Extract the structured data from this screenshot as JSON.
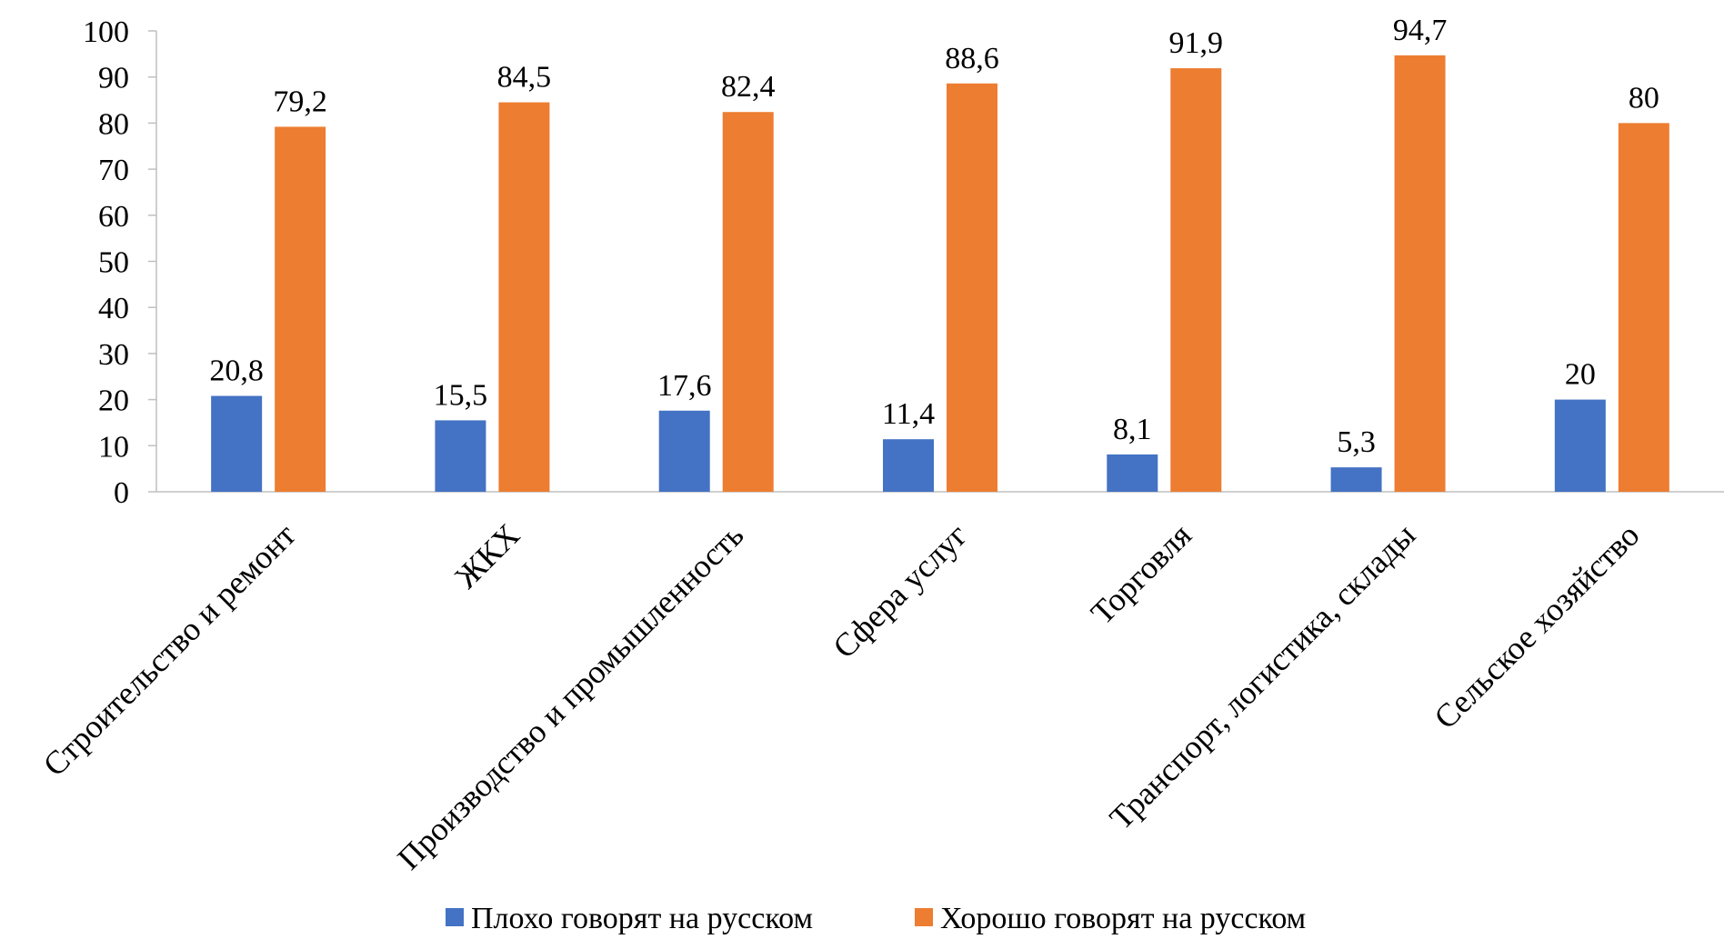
{
  "chart_data": {
    "type": "bar",
    "title": "",
    "xlabel": "",
    "ylabel": "",
    "ylim": [
      0,
      100
    ],
    "yticks": [
      0,
      10,
      20,
      30,
      40,
      50,
      60,
      70,
      80,
      90,
      100
    ],
    "grid": false,
    "legend_position": "bottom",
    "categories": [
      "Строительство и ремонт",
      "ЖКХ",
      "Производство и промышленность",
      "Сфера услуг",
      "Торговля",
      "Транспорт, логистика, склады",
      "Сельское хозяйство"
    ],
    "series": [
      {
        "name": "Плохо говорят на русском",
        "color": "#4472C4",
        "values": [
          20.8,
          15.5,
          17.6,
          11.4,
          8.1,
          5.3,
          20
        ],
        "labels": [
          "20,8",
          "15,5",
          "17,6",
          "11,4",
          "8,1",
          "5,3",
          "20"
        ]
      },
      {
        "name": "Хорошо говорят на русском",
        "color": "#ED7D31",
        "values": [
          79.2,
          84.5,
          82.4,
          88.6,
          91.9,
          94.7,
          80
        ],
        "labels": [
          "79,2",
          "84,5",
          "82,4",
          "88,6",
          "91,9",
          "94,7",
          "80"
        ]
      }
    ]
  }
}
